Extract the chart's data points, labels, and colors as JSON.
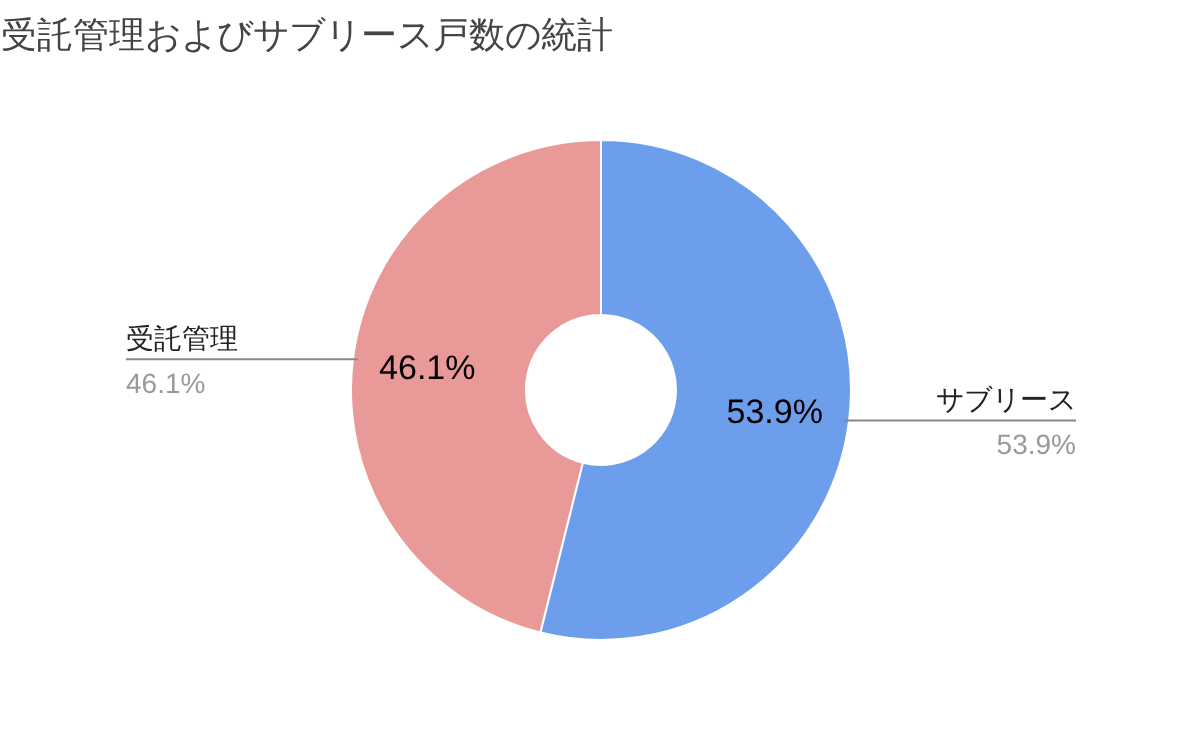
{
  "chart_data": {
    "type": "donut",
    "title": "受託管理およびサブリース戸数の統計",
    "categories": [
      "サブリース",
      "受託管理"
    ],
    "values": [
      53.9,
      46.1
    ],
    "colors": [
      "#6d9eeb",
      "#ea9999"
    ],
    "value_labels": [
      "53.9%",
      "46.1%"
    ]
  }
}
